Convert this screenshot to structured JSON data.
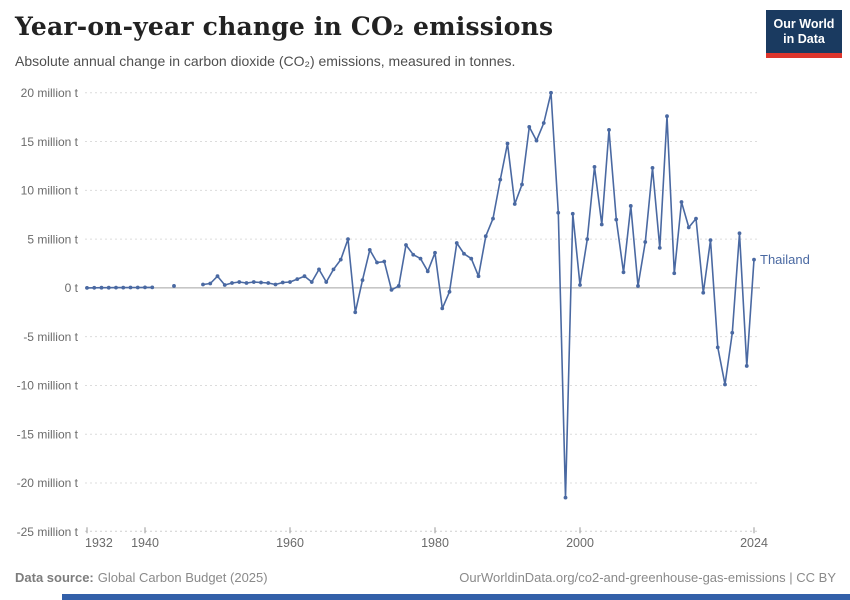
{
  "header": {
    "title": "Year-on-year change in CO₂ emissions",
    "subtitle": "Absolute annual change in carbon dioxide (CO₂) emissions, measured in tonnes."
  },
  "logo": {
    "line1": "Our World",
    "line2": "in Data",
    "bg_color": "#1a3a60",
    "accent_color": "#dd352c"
  },
  "chart_data": {
    "type": "line",
    "title": "Year-on-year change in CO2 emissions",
    "ylabel": "",
    "xlabel": "",
    "unit": "million tonnes",
    "xlim": [
      1932,
      2025
    ],
    "ylim": [
      -25,
      20
    ],
    "grid": "horizontal-dashed",
    "legend_position": "end-of-line-label",
    "line_color": "#4a69a2",
    "axis_text_color": "#6b6b6b",
    "x": [
      1932,
      1933,
      1934,
      1935,
      1936,
      1937,
      1938,
      1939,
      1940,
      1941,
      1942,
      1943,
      1944,
      1945,
      1946,
      1947,
      1948,
      1949,
      1950,
      1951,
      1952,
      1953,
      1954,
      1955,
      1956,
      1957,
      1958,
      1959,
      1960,
      1961,
      1962,
      1963,
      1964,
      1965,
      1966,
      1967,
      1968,
      1969,
      1970,
      1971,
      1972,
      1973,
      1974,
      1975,
      1976,
      1977,
      1978,
      1979,
      1980,
      1981,
      1982,
      1983,
      1984,
      1985,
      1986,
      1987,
      1988,
      1989,
      1990,
      1991,
      1992,
      1993,
      1994,
      1995,
      1996,
      1997,
      1998,
      1999,
      2000,
      2001,
      2002,
      2003,
      2004,
      2005,
      2006,
      2007,
      2008,
      2009,
      2010,
      2011,
      2012,
      2013,
      2014,
      2015,
      2016,
      2017,
      2018,
      2019,
      2020,
      2021,
      2022,
      2023,
      2024
    ],
    "series": [
      {
        "name": "Thailand",
        "color": "#4a69a2",
        "values": [
          0.0,
          0.01,
          0.02,
          0.02,
          0.03,
          0.03,
          0.04,
          0.04,
          0.05,
          0.05,
          null,
          null,
          0.2,
          null,
          null,
          null,
          0.35,
          0.45,
          1.2,
          0.3,
          0.5,
          0.6,
          0.5,
          0.6,
          0.55,
          0.5,
          0.35,
          0.55,
          0.6,
          0.9,
          1.2,
          0.6,
          1.9,
          0.6,
          1.9,
          2.9,
          5.0,
          -2.5,
          0.8,
          3.9,
          2.6,
          2.7,
          -0.2,
          0.2,
          4.4,
          3.4,
          3.0,
          1.7,
          3.6,
          -2.1,
          -0.4,
          4.6,
          3.5,
          3.0,
          1.2,
          5.3,
          7.1,
          11.1,
          14.8,
          8.6,
          10.6,
          16.5,
          15.1,
          16.9,
          20.0,
          7.7,
          -21.5,
          7.6,
          0.3,
          5.0,
          12.4,
          6.5,
          16.2,
          7.0,
          1.6,
          8.4,
          0.2,
          4.7,
          12.3,
          4.1,
          17.6,
          1.5,
          8.8,
          6.2,
          7.1,
          -0.5,
          4.9,
          -6.1,
          -9.9,
          -4.6,
          5.6,
          -8.0,
          2.9
        ]
      }
    ],
    "y_ticks": [
      {
        "value": 20,
        "label": "20 million t"
      },
      {
        "value": 15,
        "label": "15 million t"
      },
      {
        "value": 10,
        "label": "10 million t"
      },
      {
        "value": 5,
        "label": "5 million t"
      },
      {
        "value": 0,
        "label": "0 t"
      },
      {
        "value": -5,
        "label": "-5 million t"
      },
      {
        "value": -10,
        "label": "-10 million t"
      },
      {
        "value": -15,
        "label": "-15 million t"
      },
      {
        "value": -20,
        "label": "-20 million t"
      },
      {
        "value": -25,
        "label": "-25 million t"
      }
    ],
    "x_ticks": [
      {
        "year": 1932,
        "label": "1932"
      },
      {
        "year": 1940,
        "label": "1940"
      },
      {
        "year": 1960,
        "label": "1960"
      },
      {
        "year": 1980,
        "label": "1980"
      },
      {
        "year": 2000,
        "label": "2000"
      },
      {
        "year": 2024,
        "label": "2024"
      }
    ],
    "entity_label": "Thailand"
  },
  "footer": {
    "source_label": "Data source:",
    "source_value": "Global Carbon Budget (2025)",
    "right_text": "OurWorldinData.org/co2-and-greenhouse-gas-emissions | CC BY"
  }
}
